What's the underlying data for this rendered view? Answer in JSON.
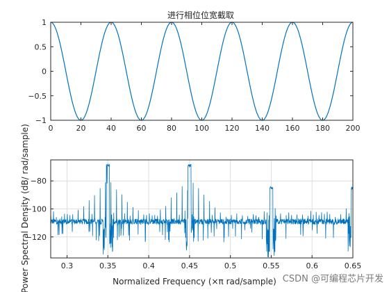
{
  "chart_data": [
    {
      "type": "line",
      "title": "进行相位位宽截取",
      "xlabel": "",
      "ylabel": "",
      "xlim": [
        0,
        200
      ],
      "ylim": [
        -1,
        1
      ],
      "xticks": [
        0,
        20,
        40,
        60,
        80,
        100,
        120,
        140,
        160,
        180,
        200
      ],
      "yticks": [
        -1,
        -0.5,
        0,
        0.5,
        1
      ],
      "grid": false,
      "series": [
        {
          "color": "#0072BD",
          "function": "cos",
          "period": 40,
          "phase_x": 40,
          "x_range": [
            0,
            200
          ]
        }
      ]
    },
    {
      "type": "line",
      "title": "",
      "xlabel": "Normalized Frequency  (×π rad/sample)",
      "ylabel": "Power Spectral Density (dB/ rad/sample)",
      "xlim": [
        0.28,
        0.65
      ],
      "ylim": [
        -135,
        -65
      ],
      "xticks": [
        0.3,
        0.35,
        0.4,
        0.45,
        0.5,
        0.55,
        0.6,
        0.65
      ],
      "yticks": [
        -120,
        -100,
        -80
      ],
      "grid": true,
      "noise_floor_db": -109,
      "spur_spacing": 0.0067,
      "peaks": [
        {
          "x": 0.35,
          "y": -70
        },
        {
          "x": 0.45,
          "y": -70
        },
        {
          "x": 0.55,
          "y": -86
        },
        {
          "x": 0.65,
          "y": -86
        }
      ],
      "series": [
        {
          "color": "#0072BD"
        }
      ]
    }
  ],
  "watermark": {
    "text": "CSDN @可编程芯片开发"
  }
}
